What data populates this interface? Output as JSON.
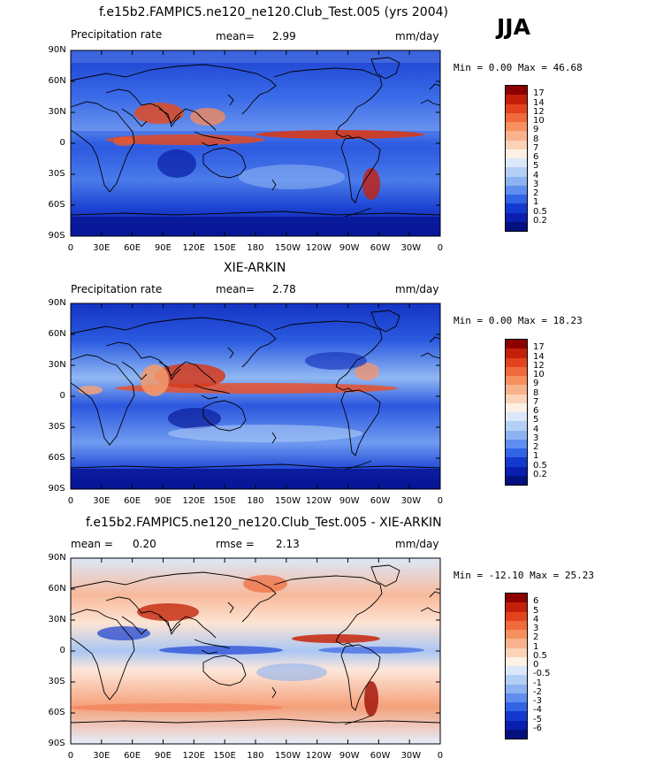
{
  "season": "JJA",
  "x_tick_labels": [
    "0",
    "30E",
    "60E",
    "90E",
    "120E",
    "150E",
    "180",
    "150W",
    "120W",
    "90W",
    "60W",
    "30W",
    "0"
  ],
  "y_tick_labels": [
    "90N",
    "60N",
    "30N",
    "0",
    "30S",
    "60S",
    "90S"
  ],
  "panels": [
    {
      "title": "f.e15b2.FAMPIC5.ne120_ne120.Club_Test.005 (yrs 2004)",
      "left_label": "Precipitation rate",
      "stat1": "mean=",
      "stat1_value": "2.99",
      "stat2": "",
      "stat2_value": "",
      "units": "mm/day",
      "minmax": "Min =    0.00 Max =  46.68",
      "colorbar_labels": [
        "17",
        "14",
        "12",
        "10",
        "9",
        "8",
        "7",
        "6",
        "5",
        "4",
        "3",
        "2",
        "1",
        "0.5",
        "0.2"
      ],
      "colorbar_colors": [
        "#8c0000",
        "#c41f0a",
        "#e2431c",
        "#f06a3b",
        "#f6905f",
        "#f9b38c",
        "#fbd3b8",
        "#fdf1e6",
        "#dbe8f9",
        "#b4cff5",
        "#8cb3f0",
        "#5f8ef0",
        "#3264e6",
        "#1439cf",
        "#0a1fb0",
        "#03107e"
      ]
    },
    {
      "title": "XIE-ARKIN",
      "left_label": "Precipitation rate",
      "stat1": "mean=",
      "stat1_value": "2.78",
      "stat2": "",
      "stat2_value": "",
      "units": "mm/day",
      "minmax": "Min =    0.00 Max =  18.23",
      "colorbar_labels": [
        "17",
        "14",
        "12",
        "10",
        "9",
        "8",
        "7",
        "6",
        "5",
        "4",
        "3",
        "2",
        "1",
        "0.5",
        "0.2"
      ],
      "colorbar_colors": [
        "#8c0000",
        "#c41f0a",
        "#e2431c",
        "#f06a3b",
        "#f6905f",
        "#f9b38c",
        "#fbd3b8",
        "#fdf1e6",
        "#dbe8f9",
        "#b4cff5",
        "#8cb3f0",
        "#5f8ef0",
        "#3264e6",
        "#1439cf",
        "#0a1fb0",
        "#03107e"
      ]
    },
    {
      "title": "f.e15b2.FAMPIC5.ne120_ne120.Club_Test.005 - XIE-ARKIN",
      "left_label": "",
      "stat1": "mean =",
      "stat1_value": "0.20",
      "stat2": "rmse =",
      "stat2_value": "2.13",
      "units": "mm/day",
      "minmax": "Min = -12.10 Max =  25.23",
      "colorbar_labels": [
        "6",
        "5",
        "4",
        "3",
        "2",
        "1",
        "0.5",
        "0",
        "-0.5",
        "-1",
        "-2",
        "-3",
        "-4",
        "-5",
        "-6"
      ],
      "colorbar_colors": [
        "#8c0000",
        "#c41f0a",
        "#e2431c",
        "#f06a3b",
        "#f6905f",
        "#f9b38c",
        "#fbd3b8",
        "#fdf1e6",
        "#dbe8f9",
        "#b4cff5",
        "#8cb3f0",
        "#5f8ef0",
        "#3264e6",
        "#1439cf",
        "#0a1fb0",
        "#03107e"
      ]
    }
  ]
}
